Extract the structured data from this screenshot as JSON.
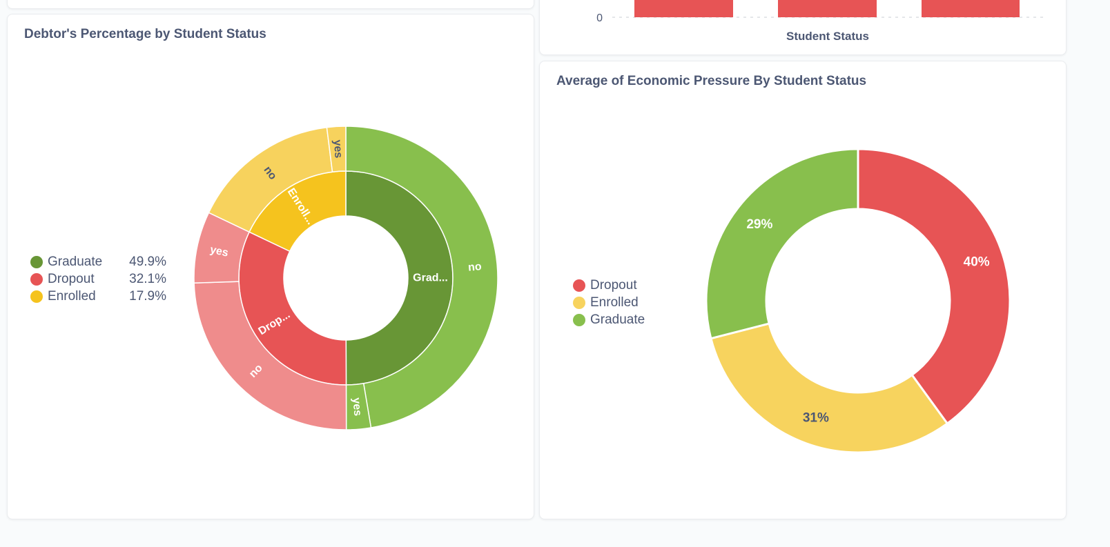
{
  "colors": {
    "graduate": "#689636",
    "graduate_light": "#88bf4d",
    "dropout": "#e75455",
    "dropout_light": "#ef8c8c",
    "enrolled": "#f5c31e",
    "enrolled_light": "#f7d25d",
    "grad_donut": "#88bf4d",
    "enr_donut": "#f7d35e",
    "drop_donut": "#e75455"
  },
  "top_bar_fragment": {
    "y_tick_zero": "0",
    "xlabel": "Student Status",
    "bars": 3
  },
  "debtor_panel": {
    "title": "Debtor's Percentage by Student Status"
  },
  "economic_panel": {
    "title": "Average of Economic Pressure By Student Status"
  },
  "chart_data": [
    {
      "type": "sunburst",
      "title": "Debtor's Percentage by Student Status",
      "inner": [
        {
          "name": "Graduate",
          "pct": 49.9,
          "label": "Grad...",
          "pct_label": "49.9%"
        },
        {
          "name": "Dropout",
          "pct": 32.1,
          "label": "Drop...",
          "pct_label": "32.1%"
        },
        {
          "name": "Enrolled",
          "pct": 17.9,
          "label": "Enroll...",
          "pct_label": "17.9%"
        }
      ],
      "outer": [
        {
          "parent": "Graduate",
          "name": "no",
          "pct": 47.3
        },
        {
          "parent": "Graduate",
          "name": "yes",
          "pct": 2.6
        },
        {
          "parent": "Dropout",
          "name": "no",
          "pct": 24.5
        },
        {
          "parent": "Dropout",
          "name": "yes",
          "pct": 7.6
        },
        {
          "parent": "Enrolled",
          "name": "no",
          "pct": 15.9
        },
        {
          "parent": "Enrolled",
          "name": "yes",
          "pct": 2.0
        }
      ]
    },
    {
      "type": "pie",
      "title": "Average of Economic Pressure By Student Status",
      "slices": [
        {
          "name": "Dropout",
          "pct": 40,
          "label": "40%"
        },
        {
          "name": "Enrolled",
          "pct": 31,
          "label": "31%"
        },
        {
          "name": "Graduate",
          "pct": 29,
          "label": "29%"
        }
      ]
    }
  ]
}
